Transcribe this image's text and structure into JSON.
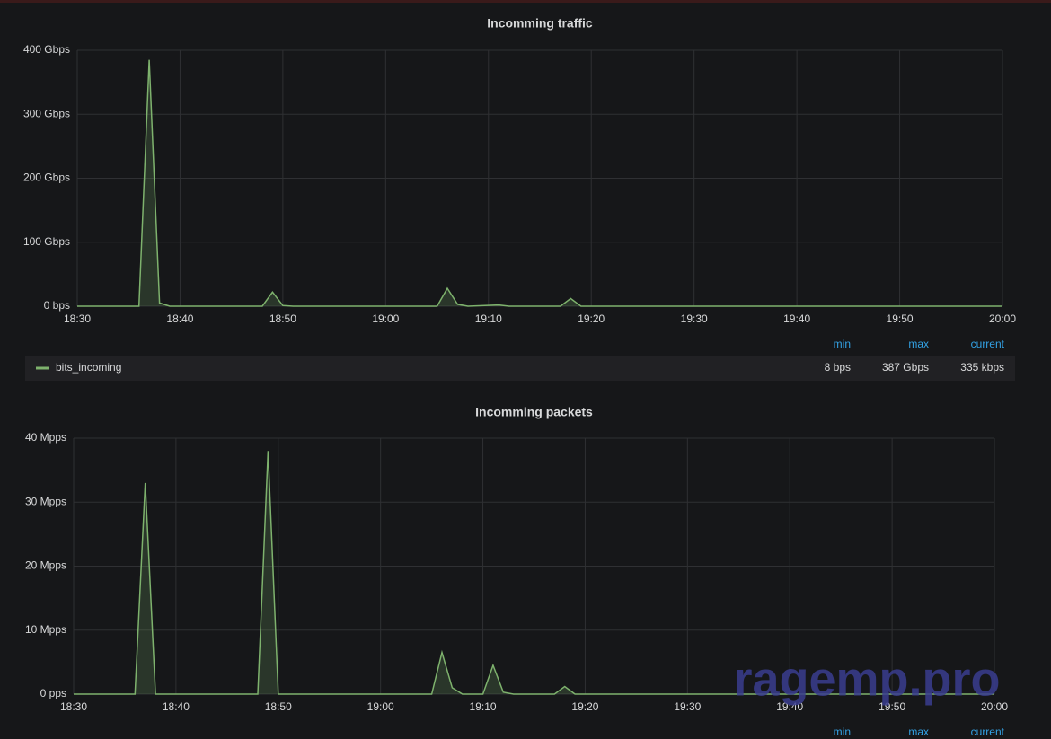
{
  "chart_data": [
    {
      "type": "line",
      "title": "Incomming traffic",
      "x": [
        "18:30",
        "18:36",
        "18:37",
        "18:38",
        "18:39",
        "18:48",
        "18:49",
        "18:50",
        "18:51",
        "19:05",
        "19:06",
        "19:07",
        "19:08",
        "19:11",
        "19:12",
        "19:17",
        "19:18",
        "19:19",
        "20:00"
      ],
      "series": [
        {
          "name": "bits_incoming",
          "color": "#7eb26d",
          "values": [
            0,
            0,
            385,
            5,
            0,
            0,
            22,
            1,
            0,
            0,
            28,
            3,
            0,
            2,
            0,
            0,
            12,
            0,
            0
          ]
        }
      ],
      "xlim": [
        "18:30",
        "20:00"
      ],
      "xticks": [
        "18:30",
        "18:40",
        "18:50",
        "19:00",
        "19:10",
        "19:20",
        "19:30",
        "19:40",
        "19:50",
        "20:00"
      ],
      "ylim": [
        0,
        400
      ],
      "yticks": [
        {
          "value": 0,
          "label": "0 bps"
        },
        {
          "value": 100,
          "label": "100 Gbps"
        },
        {
          "value": 200,
          "label": "200 Gbps"
        },
        {
          "value": 300,
          "label": "300 Gbps"
        },
        {
          "value": 400,
          "label": "400 Gbps"
        }
      ],
      "grid": true,
      "legend": {
        "columns": [
          "min",
          "max",
          "current"
        ],
        "stats": [
          "8 bps",
          "387 Gbps",
          "335 kbps"
        ]
      }
    },
    {
      "type": "line",
      "title": "Incomming packets",
      "x": [
        "18:30",
        "18:36",
        "18:37",
        "18:38",
        "18:48",
        "18:49",
        "18:50",
        "19:05",
        "19:06",
        "19:07",
        "19:08",
        "19:10",
        "19:11",
        "19:12",
        "19:13",
        "19:17",
        "19:18",
        "19:19",
        "20:00"
      ],
      "series": [
        {
          "color": "#7eb26d",
          "values": [
            0,
            0,
            33,
            0,
            0,
            38,
            0,
            0,
            6.5,
            1,
            0,
            0,
            4.5,
            0.3,
            0,
            0,
            1.2,
            0,
            0
          ]
        }
      ],
      "xlim": [
        "18:30",
        "20:00"
      ],
      "xticks": [
        "18:30",
        "18:40",
        "18:50",
        "19:00",
        "19:10",
        "19:20",
        "19:30",
        "19:40",
        "19:50",
        "20:00"
      ],
      "ylim": [
        0,
        40
      ],
      "yticks": [
        {
          "value": 0,
          "label": "0 pps"
        },
        {
          "value": 10,
          "label": "10 Mpps"
        },
        {
          "value": 20,
          "label": "20 Mpps"
        },
        {
          "value": 30,
          "label": "30 Mpps"
        },
        {
          "value": 40,
          "label": "40 Mpps"
        }
      ],
      "grid": true,
      "legend": {
        "columns": [
          "min",
          "max",
          "current"
        ]
      }
    }
  ],
  "watermark": "ragemp.pro"
}
